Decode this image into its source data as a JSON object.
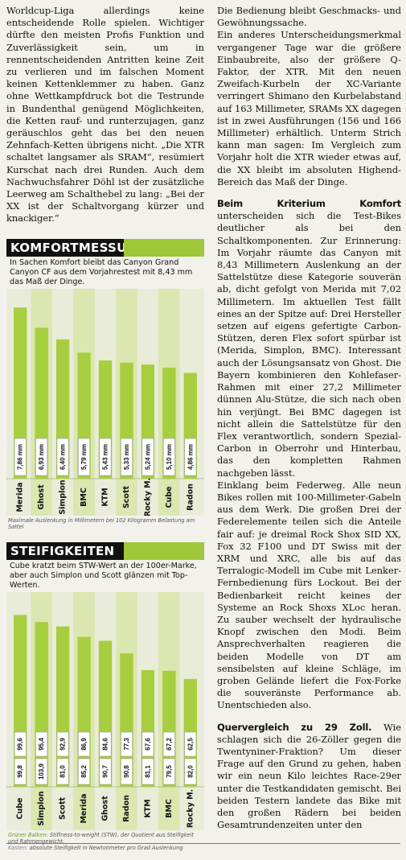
{
  "left_paragraphs": [
    "Worldcup-Liga allerdings keine entscheidende Rolle spielen. Wichtiger dürfte den meisten Profis Funktion und Zuverlässigkeit sein, um in rennentscheidenden Antritten keine Zeit zu verlieren und im falschen Moment keinen Kettenklemmer zu haben. Ganz ohne Wettkampfdruck bot die Testrunde in Bundenthal genügend Möglichkeiten, die Ketten rauf- und runterzujagen, ganz geräuschlos geht das bei den neuen Zehnfach-Ketten übrigens nicht. „Die XTR schaltet langsamer als SRAM“, resümiert Kurschat nach drei Runden. Auch dem Nachwuchsfahrer Döhl ist der zusätzliche Leerweg am Schalthebel zu lang: „Bei der XX ist der Schaltvorgang kürzer und knackiger.“"
  ],
  "komfort": {
    "title": "KOMFORTMESSUNG",
    "subtitle": "In Sachen Komfort bleibt das Canyon Grand Canyon CF aus dem Vorjahrestest mit 8,43 mm das Maß der Dinge.",
    "note": "Maximale Auslenkung in Millimetern bei 102 Kilogramm Belastung am Sattel",
    "colors": {
      "bar": "#a7ce3f",
      "band": "#cfe290"
    }
  },
  "steif": {
    "title": "STEIFIGKEITEN",
    "subtitle": "Cube kratzt beim STW-Wert an der 100er-Marke, aber auch Simplon und Scott glänzen mit Top-Werten.",
    "note_green": "Grüner Balken:",
    "note_green_text": " Stiffness-to-weight (STW), der Quotient aus Steifigkeit und Rahmengewicht.",
    "note_gray": "Kasten:",
    "note_gray_text": " absolute Steifigkeit in Newtonmeter pro Grad Auslenkung",
    "colors": {
      "bar": "#a7ce3f",
      "band": "#cfe290"
    }
  },
  "chart_data": [
    {
      "type": "bar",
      "title": "KOMFORTMESSUNG",
      "categories": [
        "Merida",
        "Ghost",
        "Simplon",
        "BMC",
        "KTM",
        "Scott",
        "Rocky M.",
        "Cube",
        "Radon"
      ],
      "values": [
        7.86,
        6.93,
        6.4,
        5.79,
        5.43,
        5.33,
        5.24,
        5.1,
        4.86
      ],
      "value_labels": [
        "7,86 mm",
        "6,93 mm",
        "6,40 mm",
        "5,79 mm",
        "5,43 mm",
        "5,33 mm",
        "5,24 mm",
        "5,10 mm",
        "4,86 mm"
      ],
      "ylim": [
        0,
        8.5
      ]
    },
    {
      "type": "bar",
      "title": "STEIFIGKEITEN",
      "categories": [
        "Cube",
        "Simplon",
        "Scott",
        "Merida",
        "Ghost",
        "Radon",
        "KTM",
        "BMC",
        "Rocky M."
      ],
      "values": [
        99.6,
        95.4,
        92.9,
        86.9,
        84.6,
        77.3,
        67.6,
        67.2,
        62.5
      ],
      "value_labels": [
        "99,6",
        "95,4",
        "92,9",
        "86,9",
        "84,6",
        "77,3",
        "67,6",
        "67,2",
        "62,5"
      ],
      "box_values": [
        99.8,
        103.9,
        81.0,
        85.2,
        90.7,
        90.8,
        81.1,
        79.5,
        82.0
      ],
      "box_labels": [
        "99,8",
        "103,9",
        "81,0",
        "85,2",
        "90,7",
        "90,8",
        "81,1",
        "79,5",
        "82,0"
      ],
      "ylim": [
        0,
        110
      ]
    }
  ],
  "right_paragraphs": [
    {
      "lead": "",
      "text": "Die Bedienung bleibt Geschmacks- und Gewöhnungssache."
    },
    {
      "lead": "",
      "text": "Ein anderes Unterscheidungsmerkmal vergangener Tage war die größere Einbaubreite, also der größere Q-Faktor, der XTR. Mit den neuen Zweifach-Kurbeln der XC-Variante verringert Shimano den Kurbelabstand auf 163 Millimeter, SRAMs XX dagegen ist in zwei Ausführungen (156 und 166 Millimeter) erhältlich. Unterm Strich kann man sagen: Im Vergleich zum Vorjahr holt die XTR wieder etwas auf, die XX bleibt im absoluten Highend-Bereich das Maß der Dinge."
    },
    {
      "lead": "Beim Kriterium Komfort",
      "text": " unterscheiden sich die Test-Bikes deutlicher als bei den Schaltkomponenten. Zur Erinnerung: Im Vorjahr räumte das Canyon mit 8,43 Millimetern Auslenkung an der Sattelstütze diese Kategorie souverän ab, dicht gefolgt von Merida mit 7,02 Millimetern. Im aktuellen Test fällt eines an der Spitze auf: Drei Hersteller setzen auf eigens gefertigte Carbon-Stützen, deren Flex sofort spürbar ist (Merida, Simplon, BMC). Interessant auch der Lösungsansatz von Ghost. Die Bayern kombinieren den Kohlefaser-Rahmen mit einer 27,2 Millimeter dünnen Alu-Stütze, die sich nach oben hin verjüngt. Bei BMC dagegen ist nicht allein die Sattelstütze für den Flex verantwortlich, sondern Spezial-Carbon in Oberrohr und Hinterbau, das den kompletten Rahmen nachgeben lässt."
    },
    {
      "lead": "",
      "text": "Einklang beim Federweg. Alle neun Bikes rollen mit 100-Millimeter-Gabeln aus dem Werk. Die großen Drei der Federelemente teilen sich die Anteile fair auf: je dreimal Rock Shox SID XX, Fox 32 F100 und DT Swiss mit der XRM und XRC, alle bis auf das Terralogic-Modell im Cube mit Lenker-Fernbedienung fürs Lockout. Bei der Bedienbarkeit reicht keines der Systeme an Rock Shoxs XLoc heran. Zu sauber wechselt der hydraulische Knopf zwischen den Modi. Beim Ansprechverhalten reagieren die beiden Modelle von DT am sensibelsten auf kleine Schläge, im groben Gelände liefert die Fox-Forke die souveränste Performance ab. Unentschieden also."
    },
    {
      "lead": "Quervergleich zu 29 Zoll.",
      "text": " Wie schlagen sich die 26-Zöller gegen die Twentyniner-Fraktion? Um dieser Frage auf den Grund zu gehen, haben wir ein neun Kilo leichtes Race-29er unter die Testkandidaten gemischt. Bei beiden Testern landete das Bike mit den großen Rädern bei beiden Gesamtrundenzeiten unter den"
    }
  ]
}
